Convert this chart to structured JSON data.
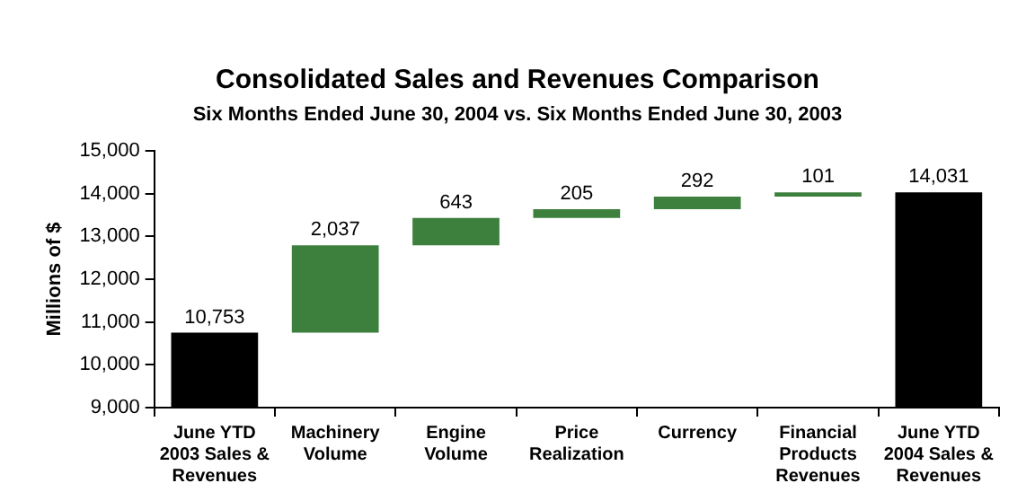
{
  "chart_data": {
    "type": "bar",
    "title": "Consolidated Sales and Revenues Comparison",
    "subtitle": "Six Months Ended June 30, 2004 vs. Six Months Ended June 30, 2003",
    "ylabel": "Millions of $",
    "categories": [
      "June YTD 2003 Sales & Revenues",
      "Machinery Volume",
      "Engine Volume",
      "Price Realization",
      "Currency",
      "Financial Products Revenues",
      "June YTD 2004 Sales & Revenues"
    ],
    "values": [
      10753,
      2037,
      643,
      205,
      292,
      101,
      14031
    ],
    "base": [
      null,
      10753,
      12790,
      13433,
      13638,
      13930,
      null
    ],
    "colors": [
      "#000000",
      "#3d7f3d",
      "#3d7f3d",
      "#3d7f3d",
      "#3d7f3d",
      "#3d7f3d",
      "#000000"
    ],
    "value_labels": [
      "10,753",
      "2,037",
      "643",
      "205",
      "292",
      "101",
      "14,031"
    ],
    "ylim": [
      9000,
      15000
    ],
    "yticks": [
      {
        "value": 9000,
        "label": "9,000"
      },
      {
        "value": 10000,
        "label": "10,000"
      },
      {
        "value": 11000,
        "label": "11,000"
      },
      {
        "value": 12000,
        "label": "12,000"
      },
      {
        "value": 13000,
        "label": "13,000"
      },
      {
        "value": 14000,
        "label": "14,000"
      },
      {
        "value": 15000,
        "label": "15,000"
      }
    ],
    "grid": false,
    "legend": false
  }
}
